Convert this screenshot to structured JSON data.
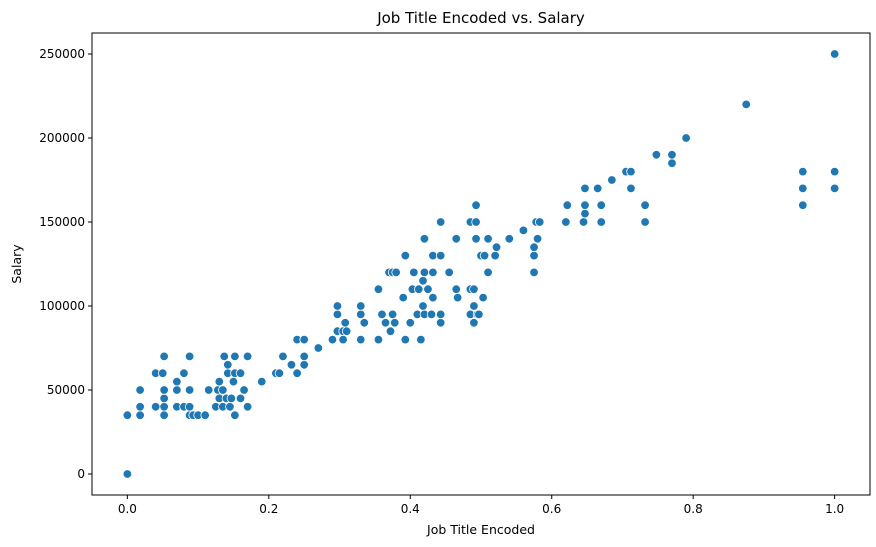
{
  "chart_data": {
    "type": "scatter",
    "title": "Job Title Encoded vs. Salary",
    "xlabel": "Job Title Encoded",
    "ylabel": "Salary",
    "xlim": [
      -0.05,
      1.05
    ],
    "ylim": [
      -12500,
      262500
    ],
    "x_ticks": [
      0.0,
      0.2,
      0.4,
      0.6,
      0.8,
      1.0
    ],
    "x_tick_labels": [
      "0.0",
      "0.2",
      "0.4",
      "0.6",
      "0.8",
      "1.0"
    ],
    "y_ticks": [
      0,
      50000,
      100000,
      150000,
      200000,
      250000
    ],
    "y_tick_labels": [
      "0",
      "50000",
      "100000",
      "150000",
      "200000",
      "250000"
    ],
    "grid": false,
    "color": "#1f77b4",
    "series": [
      {
        "points": [
          [
            0.0,
            0
          ],
          [
            0.0,
            35000
          ],
          [
            0.018,
            35000
          ],
          [
            0.018,
            40000
          ],
          [
            0.018,
            50000
          ],
          [
            0.04,
            40000
          ],
          [
            0.04,
            60000
          ],
          [
            0.05,
            60000
          ],
          [
            0.052,
            35000
          ],
          [
            0.052,
            40000
          ],
          [
            0.052,
            45000
          ],
          [
            0.052,
            50000
          ],
          [
            0.052,
            70000
          ],
          [
            0.07,
            40000
          ],
          [
            0.07,
            50000
          ],
          [
            0.07,
            55000
          ],
          [
            0.08,
            40000
          ],
          [
            0.08,
            60000
          ],
          [
            0.088,
            35000
          ],
          [
            0.088,
            40000
          ],
          [
            0.088,
            50000
          ],
          [
            0.088,
            70000
          ],
          [
            0.093,
            35000
          ],
          [
            0.1,
            35000
          ],
          [
            0.11,
            35000
          ],
          [
            0.115,
            50000
          ],
          [
            0.125,
            40000
          ],
          [
            0.128,
            50000
          ],
          [
            0.13,
            45000
          ],
          [
            0.13,
            55000
          ],
          [
            0.135,
            40000
          ],
          [
            0.135,
            50000
          ],
          [
            0.137,
            70000
          ],
          [
            0.14,
            45000
          ],
          [
            0.142,
            60000
          ],
          [
            0.142,
            65000
          ],
          [
            0.145,
            40000
          ],
          [
            0.147,
            45000
          ],
          [
            0.15,
            55000
          ],
          [
            0.152,
            35000
          ],
          [
            0.152,
            60000
          ],
          [
            0.152,
            70000
          ],
          [
            0.16,
            45000
          ],
          [
            0.16,
            60000
          ],
          [
            0.165,
            50000
          ],
          [
            0.17,
            40000
          ],
          [
            0.17,
            70000
          ],
          [
            0.19,
            55000
          ],
          [
            0.21,
            60000
          ],
          [
            0.215,
            60000
          ],
          [
            0.22,
            70000
          ],
          [
            0.232,
            65000
          ],
          [
            0.24,
            60000
          ],
          [
            0.24,
            80000
          ],
          [
            0.25,
            65000
          ],
          [
            0.25,
            70000
          ],
          [
            0.25,
            80000
          ],
          [
            0.27,
            75000
          ],
          [
            0.29,
            80000
          ],
          [
            0.297,
            85000
          ],
          [
            0.297,
            95000
          ],
          [
            0.297,
            100000
          ],
          [
            0.305,
            80000
          ],
          [
            0.305,
            85000
          ],
          [
            0.308,
            90000
          ],
          [
            0.31,
            85000
          ],
          [
            0.33,
            80000
          ],
          [
            0.33,
            95000
          ],
          [
            0.33,
            100000
          ],
          [
            0.335,
            90000
          ],
          [
            0.355,
            80000
          ],
          [
            0.355,
            110000
          ],
          [
            0.36,
            95000
          ],
          [
            0.365,
            90000
          ],
          [
            0.37,
            120000
          ],
          [
            0.372,
            85000
          ],
          [
            0.375,
            95000
          ],
          [
            0.375,
            120000
          ],
          [
            0.378,
            90000
          ],
          [
            0.38,
            120000
          ],
          [
            0.39,
            105000
          ],
          [
            0.393,
            80000
          ],
          [
            0.393,
            130000
          ],
          [
            0.4,
            90000
          ],
          [
            0.403,
            110000
          ],
          [
            0.405,
            120000
          ],
          [
            0.41,
            95000
          ],
          [
            0.412,
            110000
          ],
          [
            0.415,
            80000
          ],
          [
            0.418,
            100000
          ],
          [
            0.418,
            115000
          ],
          [
            0.42,
            95000
          ],
          [
            0.42,
            120000
          ],
          [
            0.42,
            140000
          ],
          [
            0.425,
            110000
          ],
          [
            0.43,
            95000
          ],
          [
            0.432,
            105000
          ],
          [
            0.432,
            120000
          ],
          [
            0.432,
            130000
          ],
          [
            0.443,
            90000
          ],
          [
            0.443,
            95000
          ],
          [
            0.443,
            130000
          ],
          [
            0.443,
            150000
          ],
          [
            0.455,
            120000
          ],
          [
            0.465,
            110000
          ],
          [
            0.465,
            140000
          ],
          [
            0.467,
            105000
          ],
          [
            0.485,
            95000
          ],
          [
            0.485,
            110000
          ],
          [
            0.485,
            150000
          ],
          [
            0.49,
            90000
          ],
          [
            0.49,
            100000
          ],
          [
            0.49,
            110000
          ],
          [
            0.493,
            140000
          ],
          [
            0.493,
            150000
          ],
          [
            0.493,
            160000
          ],
          [
            0.495,
            95000
          ],
          [
            0.497,
            95000
          ],
          [
            0.5,
            130000
          ],
          [
            0.503,
            105000
          ],
          [
            0.505,
            130000
          ],
          [
            0.51,
            120000
          ],
          [
            0.51,
            140000
          ],
          [
            0.52,
            130000
          ],
          [
            0.522,
            135000
          ],
          [
            0.54,
            140000
          ],
          [
            0.56,
            145000
          ],
          [
            0.575,
            120000
          ],
          [
            0.575,
            130000
          ],
          [
            0.575,
            135000
          ],
          [
            0.578,
            150000
          ],
          [
            0.58,
            140000
          ],
          [
            0.583,
            150000
          ],
          [
            0.62,
            150000
          ],
          [
            0.622,
            160000
          ],
          [
            0.645,
            150000
          ],
          [
            0.647,
            155000
          ],
          [
            0.647,
            160000
          ],
          [
            0.647,
            170000
          ],
          [
            0.665,
            170000
          ],
          [
            0.67,
            150000
          ],
          [
            0.67,
            160000
          ],
          [
            0.685,
            175000
          ],
          [
            0.705,
            180000
          ],
          [
            0.712,
            170000
          ],
          [
            0.712,
            180000
          ],
          [
            0.732,
            150000
          ],
          [
            0.732,
            160000
          ],
          [
            0.748,
            190000
          ],
          [
            0.77,
            185000
          ],
          [
            0.77,
            190000
          ],
          [
            0.79,
            200000
          ],
          [
            0.875,
            220000
          ],
          [
            0.955,
            160000
          ],
          [
            0.955,
            170000
          ],
          [
            0.955,
            180000
          ],
          [
            1.0,
            170000
          ],
          [
            1.0,
            180000
          ],
          [
            1.0,
            250000
          ]
        ]
      }
    ]
  }
}
